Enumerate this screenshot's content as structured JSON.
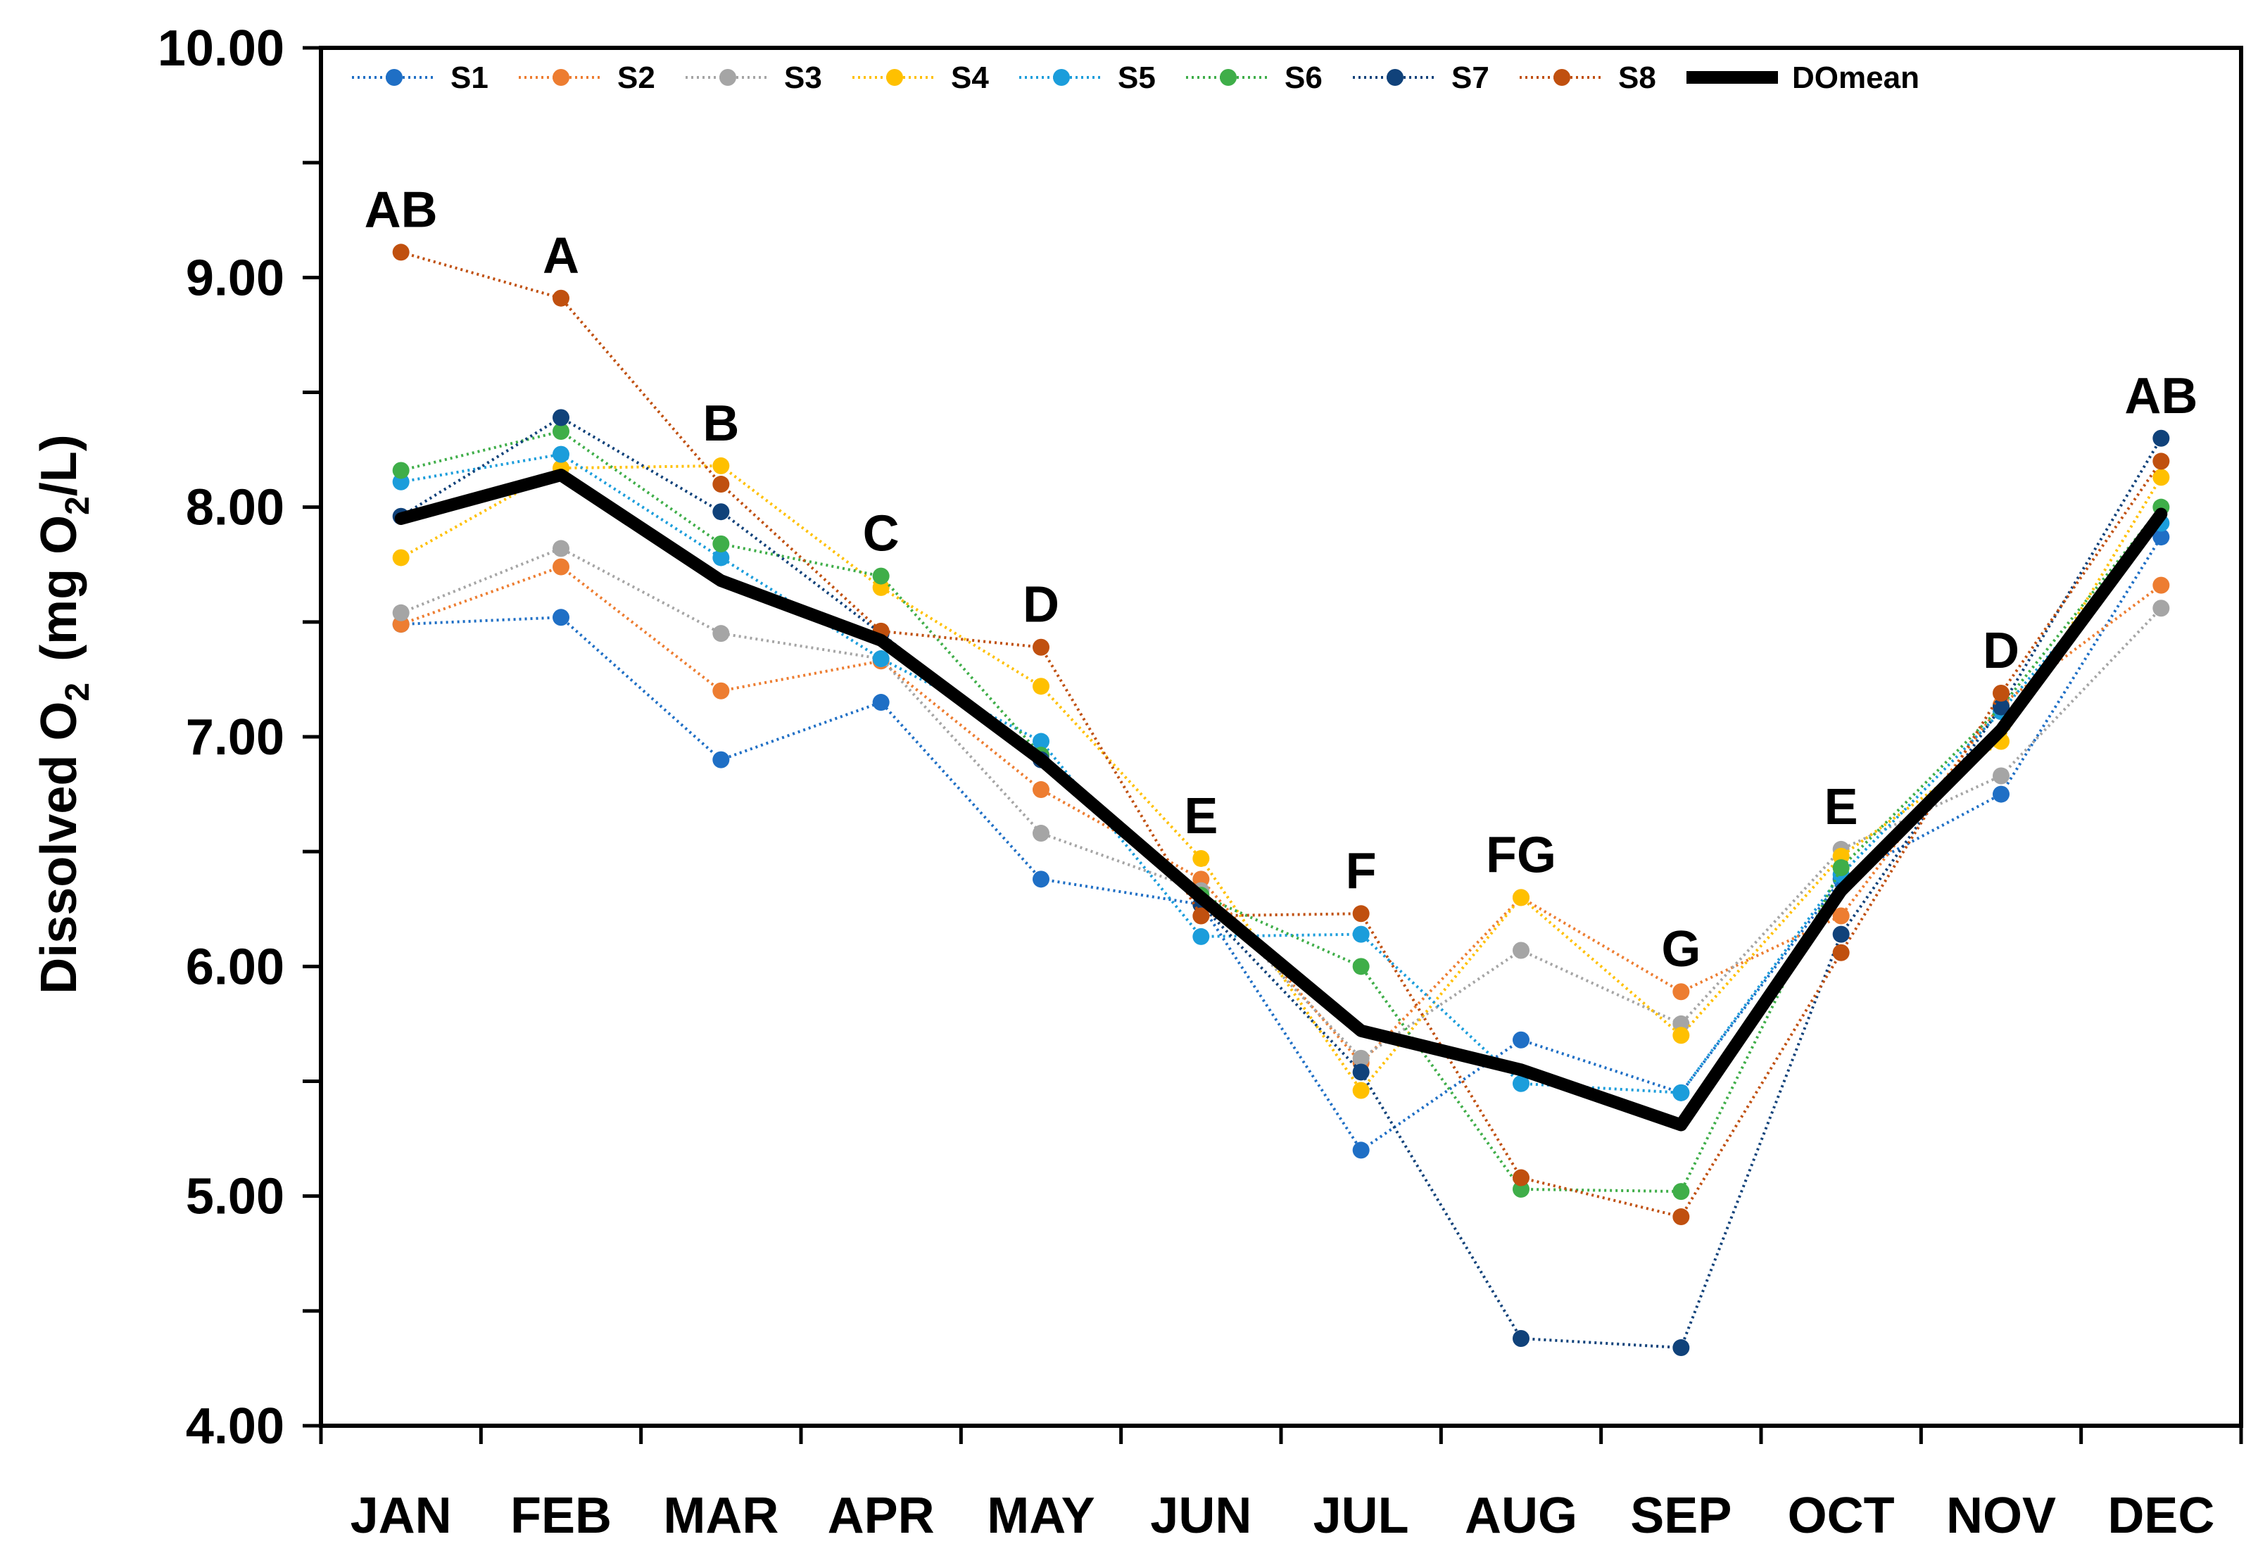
{
  "chart_data": {
    "type": "line",
    "title": "",
    "xlabel": "",
    "ylabel": "Dissolved O2 (mg O2/L)",
    "ylabel_parts": {
      "main": "Dissolved O",
      "sub1": "2",
      "unit_open": "(mg O",
      "sub2": "2",
      "unit_close": "/L)"
    },
    "ylim": [
      4.0,
      10.0
    ],
    "yticks": [
      4.0,
      5.0,
      6.0,
      7.0,
      8.0,
      9.0,
      10.0
    ],
    "ytick_labels": [
      "4.00",
      "5.00",
      "6.00",
      "7.00",
      "8.00",
      "9.00",
      "10.00"
    ],
    "categories": [
      "JAN",
      "FEB",
      "MAR",
      "APR",
      "MAY",
      "JUN",
      "JUL",
      "AUG",
      "SEP",
      "OCT",
      "NOV",
      "DEC"
    ],
    "legend_position": "top",
    "series": [
      {
        "name": "S1",
        "color": "#1f6fc5",
        "style": "dotted",
        "values": [
          7.49,
          7.52,
          6.9,
          7.15,
          6.38,
          6.27,
          5.2,
          5.68,
          5.45,
          6.38,
          6.75,
          7.87
        ]
      },
      {
        "name": "S2",
        "color": "#ed7d31",
        "style": "dotted",
        "values": [
          7.49,
          7.74,
          7.2,
          7.33,
          6.77,
          6.38,
          5.58,
          6.3,
          5.89,
          6.22,
          7.14,
          7.66
        ]
      },
      {
        "name": "S3",
        "color": "#a5a5a5",
        "style": "dotted",
        "values": [
          7.54,
          7.82,
          7.45,
          7.34,
          6.58,
          6.33,
          5.6,
          6.07,
          5.75,
          6.51,
          6.83,
          7.56
        ]
      },
      {
        "name": "S4",
        "color": "#ffc000",
        "style": "dotted",
        "values": [
          7.78,
          8.17,
          8.18,
          7.65,
          7.22,
          6.47,
          5.46,
          6.3,
          5.7,
          6.48,
          6.98,
          8.13
        ]
      },
      {
        "name": "S5",
        "color": "#1b9ddb",
        "style": "dotted",
        "values": [
          8.11,
          8.23,
          7.78,
          7.34,
          6.98,
          6.13,
          6.14,
          5.49,
          5.45,
          6.4,
          7.11,
          7.93
        ]
      },
      {
        "name": "S6",
        "color": "#3fae49",
        "style": "dotted",
        "values": [
          8.16,
          8.33,
          7.84,
          7.7,
          6.92,
          6.31,
          6.0,
          5.03,
          5.02,
          6.43,
          7.13,
          8.0
        ]
      },
      {
        "name": "S7",
        "color": "#10427a",
        "style": "dotted",
        "values": [
          7.96,
          8.39,
          7.98,
          7.45,
          6.9,
          6.27,
          5.54,
          4.38,
          4.34,
          6.14,
          7.13,
          8.3
        ]
      },
      {
        "name": "S8",
        "color": "#c0500f",
        "style": "dotted",
        "values": [
          9.11,
          8.91,
          8.1,
          7.46,
          7.39,
          6.22,
          6.23,
          5.08,
          4.91,
          6.06,
          7.19,
          8.2
        ]
      },
      {
        "name": "DOmean",
        "color": "#000000",
        "style": "solid",
        "values": [
          7.95,
          8.14,
          7.68,
          7.42,
          6.9,
          6.3,
          5.72,
          5.55,
          5.31,
          6.33,
          7.03,
          7.97
        ]
      }
    ],
    "annotations": [
      {
        "category": "JAN",
        "y": 9.11,
        "text": "AB"
      },
      {
        "category": "FEB",
        "y": 8.91,
        "text": "A"
      },
      {
        "category": "MAR",
        "y": 8.18,
        "text": "B"
      },
      {
        "category": "APR",
        "y": 7.7,
        "text": "C"
      },
      {
        "category": "MAY",
        "y": 7.39,
        "text": "D"
      },
      {
        "category": "JUN",
        "y": 6.47,
        "text": "E"
      },
      {
        "category": "JUL",
        "y": 6.23,
        "text": "F"
      },
      {
        "category": "AUG",
        "y": 6.3,
        "text": "FG"
      },
      {
        "category": "SEP",
        "y": 5.89,
        "text": "G"
      },
      {
        "category": "OCT",
        "y": 6.51,
        "text": "E"
      },
      {
        "category": "NOV",
        "y": 7.19,
        "text": "D"
      },
      {
        "category": "DEC",
        "y": 8.3,
        "text": "AB"
      }
    ]
  }
}
